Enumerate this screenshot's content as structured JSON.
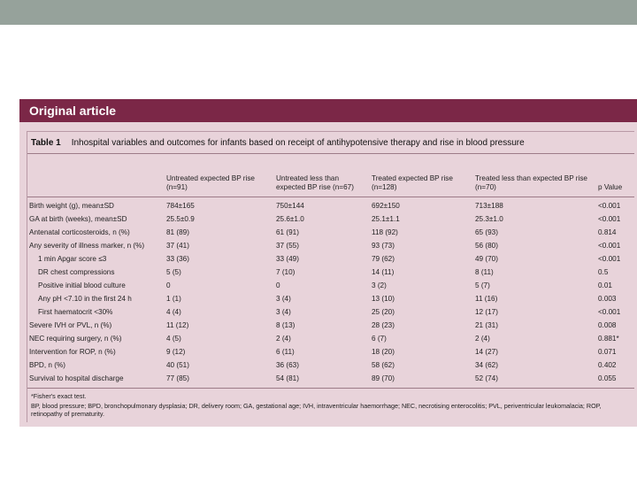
{
  "banner": "Original article",
  "table": {
    "number": "Table 1",
    "title": "Inhospital variables and outcomes for infants based on receipt of antihypotensive therapy and rise in blood pressure",
    "columns": [
      "Untreated expected BP rise (n=91)",
      "Untreated less than expected BP rise (n=67)",
      "Treated expected BP rise (n=128)",
      "Treated less than expected BP rise (n=70)",
      "p Value"
    ],
    "rows": [
      {
        "label": "Birth weight (g), mean±SD",
        "cells": [
          "784±165",
          "750±144",
          "692±150",
          "713±188",
          "<0.001"
        ]
      },
      {
        "label": "GA at birth (weeks), mean±SD",
        "cells": [
          "25.5±0.9",
          "25.6±1.0",
          "25.1±1.1",
          "25.3±1.0",
          "<0.001"
        ]
      },
      {
        "label": "Antenatal corticosteroids, n (%)",
        "cells": [
          "81 (89)",
          "61 (91)",
          "118 (92)",
          "65 (93)",
          "0.814"
        ]
      },
      {
        "label": "Any severity of illness marker, n (%)",
        "cells": [
          "37 (41)",
          "37 (55)",
          "93 (73)",
          "56 (80)",
          "<0.001"
        ]
      },
      {
        "label": "1 min Apgar score ≤3",
        "cells": [
          "33 (36)",
          "33 (49)",
          "79 (62)",
          "49 (70)",
          "<0.001"
        ]
      },
      {
        "label": "DR chest compressions",
        "cells": [
          "5 (5)",
          "7 (10)",
          "14 (11)",
          "8 (11)",
          "0.5"
        ]
      },
      {
        "label": "Positive initial blood culture",
        "cells": [
          "0",
          "0",
          "3 (2)",
          "5 (7)",
          "0.01"
        ]
      },
      {
        "label": "Any pH <7.10 in the first 24 h",
        "cells": [
          "1 (1)",
          "3 (4)",
          "13 (10)",
          "11 (16)",
          "0.003"
        ]
      },
      {
        "label": "First haematocrit <30%",
        "cells": [
          "4 (4)",
          "3 (4)",
          "25 (20)",
          "12 (17)",
          "<0.001"
        ]
      },
      {
        "label": "Severe IVH or PVL, n (%)",
        "cells": [
          "11 (12)",
          "8 (13)",
          "28 (23)",
          "21 (31)",
          "0.008"
        ]
      },
      {
        "label": "NEC requiring surgery, n (%)",
        "cells": [
          "4 (5)",
          "2 (4)",
          "6 (7)",
          "2 (4)",
          "0.881*"
        ]
      },
      {
        "label": "Intervention for ROP, n (%)",
        "cells": [
          "9 (12)",
          "6 (11)",
          "18 (20)",
          "14 (27)",
          "0.071"
        ]
      },
      {
        "label": "BPD, n (%)",
        "cells": [
          "40 (51)",
          "36 (63)",
          "58 (62)",
          "34 (62)",
          "0.402"
        ]
      },
      {
        "label": "Survival to hospital discharge",
        "cells": [
          "77 (85)",
          "54 (81)",
          "89 (70)",
          "52 (74)",
          "0.055"
        ]
      }
    ],
    "footnotes": [
      "*Fisher's exact test.",
      "BP, blood pressure; BPD, bronchopulmonary dysplasia; DR, delivery room; GA, gestational age; IVH, intraventricular haemorrhage; NEC, necrotising enterocolitis; PVL, periventricular leukomalacia; ROP, retinopathy of prematurity."
    ]
  }
}
